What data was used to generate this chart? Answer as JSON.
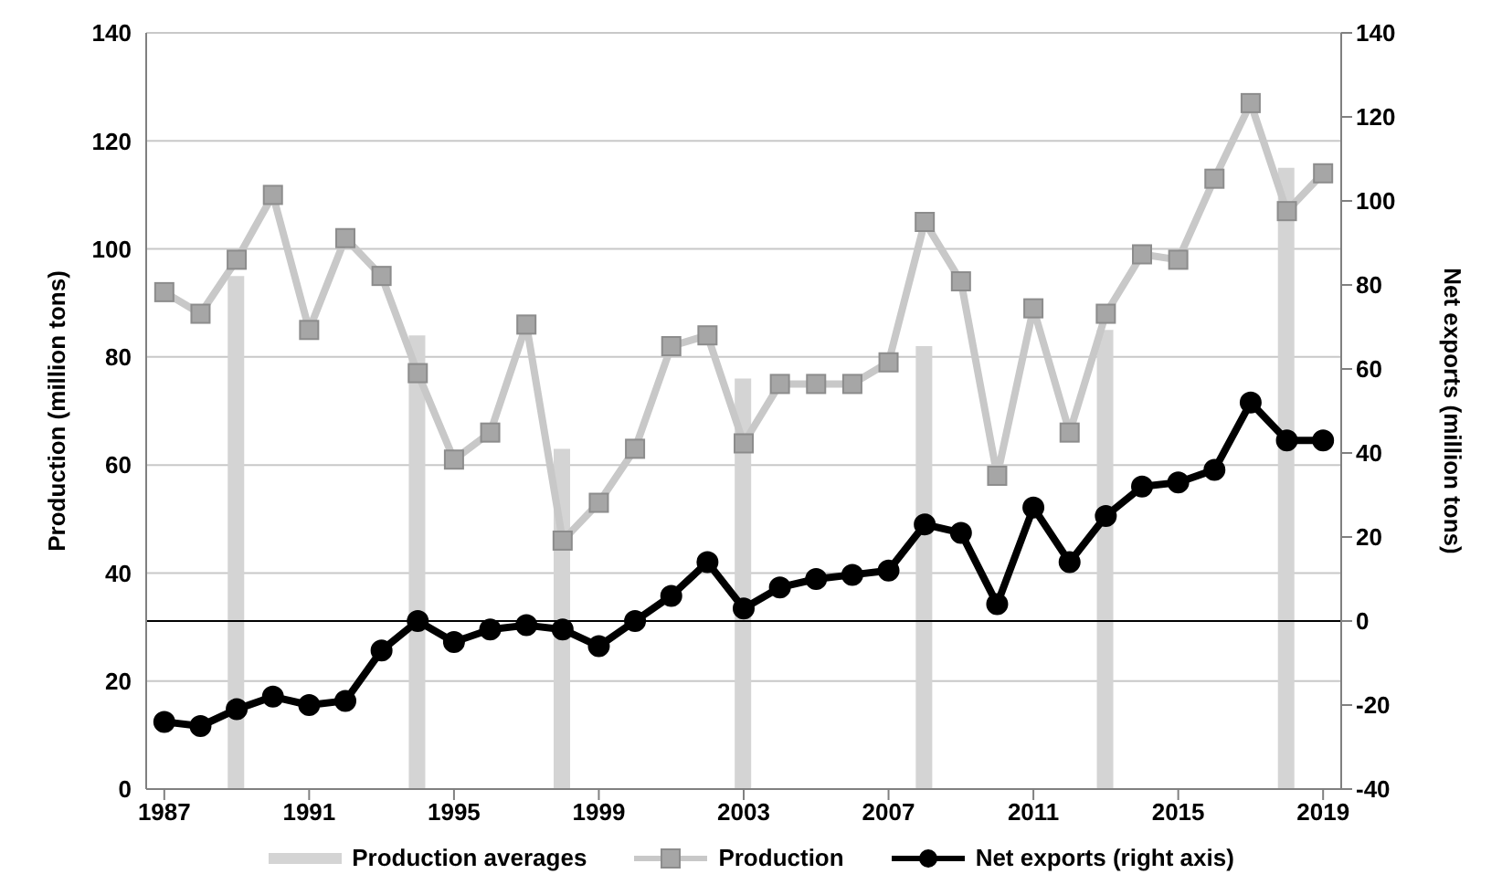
{
  "chart_data": {
    "type": "line",
    "ylabel": "Production (million tons)",
    "y2label": "Net exports (million tons)",
    "xlim": [
      1986.5,
      2019.5
    ],
    "xticks": [
      1987,
      1991,
      1995,
      1999,
      2003,
      2007,
      2011,
      2015,
      2019
    ],
    "ylim": [
      0,
      140
    ],
    "yticks": [
      0,
      20,
      40,
      60,
      80,
      100,
      120,
      140
    ],
    "y2lim": [
      -40,
      140
    ],
    "y2ticks": [
      -40,
      -20,
      0,
      20,
      40,
      60,
      80,
      100,
      120,
      140
    ],
    "grid": "y",
    "legend": "bottom",
    "x": [
      1987,
      1988,
      1989,
      1990,
      1991,
      1992,
      1993,
      1994,
      1995,
      1996,
      1997,
      1998,
      1999,
      2000,
      2001,
      2002,
      2003,
      2004,
      2005,
      2006,
      2007,
      2008,
      2009,
      2010,
      2011,
      2012,
      2013,
      2014,
      2015,
      2016,
      2017,
      2018,
      2019
    ],
    "series": [
      {
        "name": "Production averages",
        "type": "bar",
        "color": "#d4d4d4",
        "x": [
          1989,
          1994,
          1998,
          2003,
          2008,
          2013,
          2018
        ],
        "values": [
          95,
          84,
          63,
          76,
          82,
          85,
          115
        ]
      },
      {
        "name": "Production",
        "color": "#c8c8c8",
        "marker": "square",
        "values": [
          92,
          88,
          98,
          110,
          85,
          102,
          95,
          77,
          61,
          66,
          86,
          46,
          53,
          63,
          82,
          84,
          64,
          75,
          75,
          75,
          79,
          105,
          94,
          58,
          89,
          66,
          88,
          99,
          98,
          113,
          127,
          107,
          114
        ]
      },
      {
        "name": "Net exports (right axis)",
        "axis": "y2",
        "color": "#000000",
        "marker": "circle",
        "values": [
          -24,
          -25,
          -21,
          -18,
          -20,
          -19,
          -7,
          0,
          -5,
          -2,
          -1,
          -2,
          -6,
          0,
          6,
          14,
          3,
          8,
          10,
          11,
          12,
          23,
          21,
          4,
          27,
          14,
          25,
          32,
          33,
          36,
          52,
          43,
          43
        ]
      }
    ],
    "ref_lines": [
      {
        "axis": "y2",
        "value": 0,
        "color": "#000000"
      }
    ]
  }
}
